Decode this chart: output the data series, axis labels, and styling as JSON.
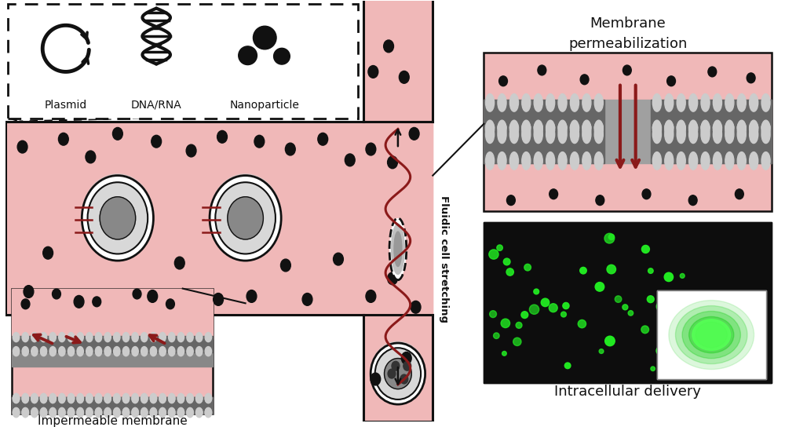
{
  "bg_color": "#ffffff",
  "channel_color": "#f0b8b8",
  "channel_border": "#111111",
  "cell_outer": "#e0e0e0",
  "cell_mid": "#aaaaaa",
  "cell_nucleus": "#666666",
  "dot_color": "#111111",
  "red_color": "#8b1a1a",
  "mem_dark": "#666666",
  "mem_mid": "#888888",
  "mem_light": "#cccccc",
  "white": "#ffffff",
  "label_plasmid": "Plasmid",
  "label_dna": "DNA/RNA",
  "label_nano": "Nanoparticle",
  "label_impermeable": "Impermeable membrane",
  "label_membrane_perm_1": "Membrane",
  "label_membrane_perm_2": "permeabilization",
  "label_fluidic": "Fluidic cell stretching",
  "label_intracellular": "Intracellular delivery",
  "figsize": [
    10.0,
    5.44
  ],
  "dpi": 100
}
